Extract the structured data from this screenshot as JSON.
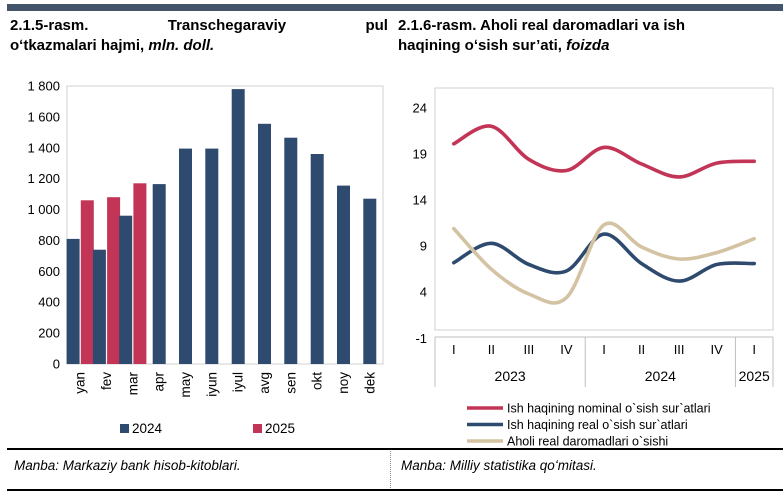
{
  "left_panel": {
    "title_l1_a": "2.1.5-rasm.",
    "title_l1_b": "Transchegaraviy",
    "title_l1_c": "pul",
    "title_l2_bold": "oʻtkazmalari hajmi,",
    "title_l2_italic": "mln. doll.",
    "source": "Manba: Markaziy bank hisob-kitoblari."
  },
  "right_panel": {
    "title_line1": "2.1.6-rasm. Aholi real daromadlari va ish",
    "title_line2_bold": "haqining oʻsish sur’ati,",
    "title_line2_italic": "foizda",
    "source": "Manba: Milliy statistika qoʻmitasi."
  },
  "colors": {
    "accent_bar": "#44546A",
    "navy": "#2E4A6E",
    "crimson": "#C23556",
    "tan": "#D3C3A2",
    "plot_border": "#D0D0D0",
    "axis_line": "#BFBFBF"
  },
  "chart_data": [
    {
      "type": "bar",
      "title": "Transchegaraviy pul oʻtkazmalari hajmi, mln. doll.",
      "categories": [
        "yan",
        "fev",
        "mar",
        "apr",
        "may",
        "iyun",
        "iyul",
        "avg",
        "sen",
        "okt",
        "noy",
        "dek"
      ],
      "series": [
        {
          "name": "2024",
          "color": "#2E4A6E",
          "values": [
            810,
            740,
            960,
            1165,
            1395,
            1395,
            1780,
            1555,
            1465,
            1360,
            1155,
            1070
          ]
        },
        {
          "name": "2025",
          "color": "#C23556",
          "values": [
            1060,
            1080,
            1170,
            null,
            null,
            null,
            null,
            null,
            null,
            null,
            null,
            null
          ]
        }
      ],
      "ylim": [
        0,
        1800
      ],
      "ytick_step": 200,
      "ytick_labels": [
        "0",
        "200",
        "400",
        "600",
        "800",
        "1 000",
        "1 200",
        "1 400",
        "1 600",
        "1 800"
      ],
      "grid": false,
      "legend_position": "bottom"
    },
    {
      "type": "line",
      "title": "Aholi real daromadlari va ish haqining oʻsish sur’ati, foizda",
      "x_quarters": [
        "I",
        "II",
        "III",
        "IV",
        "I",
        "II",
        "III",
        "IV",
        "I"
      ],
      "x_years": [
        {
          "label": "2023",
          "span": 4
        },
        {
          "label": "2024",
          "span": 4
        },
        {
          "label": "2025",
          "span": 1
        }
      ],
      "yticks": [
        -1,
        4,
        9,
        14,
        19,
        24
      ],
      "ylim": [
        -1,
        26
      ],
      "grid": false,
      "smooth": true,
      "legend_position": "bottom",
      "series": [
        {
          "name": "Ish haqining nominal o`sish sur`atlari",
          "color": "#C23556",
          "values": [
            20.1,
            22.0,
            18.4,
            17.2,
            19.7,
            17.9,
            16.5,
            18.0,
            18.2
          ]
        },
        {
          "name": "Ish haqining real o`sish sur`atlari",
          "color": "#2E4A6E",
          "values": [
            7.2,
            9.3,
            7.0,
            6.3,
            10.3,
            7.1,
            5.2,
            7.0,
            7.1
          ]
        },
        {
          "name": "Aholi real daromadlari o`sishi",
          "color": "#D3C3A2",
          "values": [
            10.9,
            6.5,
            3.8,
            3.4,
            11.3,
            8.9,
            7.6,
            8.3,
            9.8
          ]
        }
      ]
    }
  ]
}
